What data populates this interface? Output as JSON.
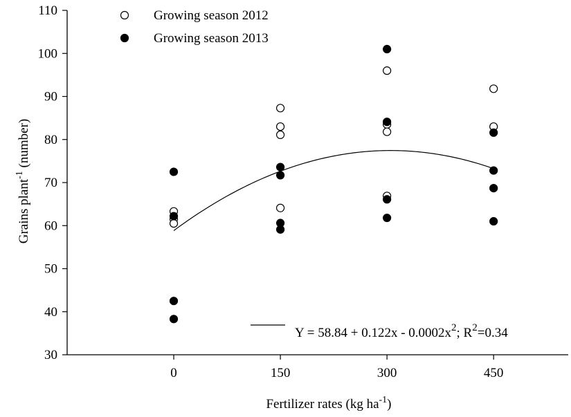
{
  "chart_data": {
    "type": "scatter",
    "xlabel": "Fertilizer rates  (kg ha",
    "xlabel_sup": "-1",
    "xlabel_end": ")",
    "ylabel": "Grains plant",
    "ylabel_sup": "-1",
    "ylabel_end": " (number)",
    "x_ticks": [
      0,
      150,
      300,
      450
    ],
    "y_ticks": [
      30,
      40,
      50,
      60,
      70,
      80,
      90,
      100,
      110
    ],
    "xlim": [
      -150,
      555
    ],
    "ylim": [
      30,
      110
    ],
    "grid": false,
    "legend_position": "top-left",
    "series": [
      {
        "name": "Growing season 2012",
        "marker": "open-circle",
        "points": [
          {
            "x": 0,
            "y": 63.3
          },
          {
            "x": 0,
            "y": 61.5
          },
          {
            "x": 0,
            "y": 60.5
          },
          {
            "x": 150,
            "y": 87.3
          },
          {
            "x": 150,
            "y": 83.0
          },
          {
            "x": 150,
            "y": 81.1
          },
          {
            "x": 150,
            "y": 64.1
          },
          {
            "x": 300,
            "y": 96.0
          },
          {
            "x": 300,
            "y": 83.5
          },
          {
            "x": 300,
            "y": 81.8
          },
          {
            "x": 300,
            "y": 66.9
          },
          {
            "x": 450,
            "y": 91.8
          },
          {
            "x": 450,
            "y": 83.0
          }
        ]
      },
      {
        "name": "Growing season 2013",
        "marker": "filled-circle",
        "points": [
          {
            "x": 0,
            "y": 72.5
          },
          {
            "x": 0,
            "y": 62.2
          },
          {
            "x": 0,
            "y": 42.5
          },
          {
            "x": 0,
            "y": 38.3
          },
          {
            "x": 150,
            "y": 73.6
          },
          {
            "x": 150,
            "y": 71.7
          },
          {
            "x": 150,
            "y": 60.6
          },
          {
            "x": 150,
            "y": 59.1
          },
          {
            "x": 300,
            "y": 101.0
          },
          {
            "x": 300,
            "y": 84.1
          },
          {
            "x": 300,
            "y": 66.1
          },
          {
            "x": 300,
            "y": 61.8
          },
          {
            "x": 450,
            "y": 81.6
          },
          {
            "x": 450,
            "y": 72.8
          },
          {
            "x": 450,
            "y": 68.7
          },
          {
            "x": 450,
            "y": 61.0
          }
        ]
      }
    ],
    "fit": {
      "type": "quadratic",
      "coefficients": [
        58.84,
        0.122,
        -0.0002
      ],
      "x_range": [
        0,
        450
      ],
      "label_main": "Y = 58.84 + 0.122x - 0.0002x",
      "label_sup": "2",
      "label_mid": "; R",
      "label_sup2": "2",
      "label_end": "=0.34"
    }
  }
}
